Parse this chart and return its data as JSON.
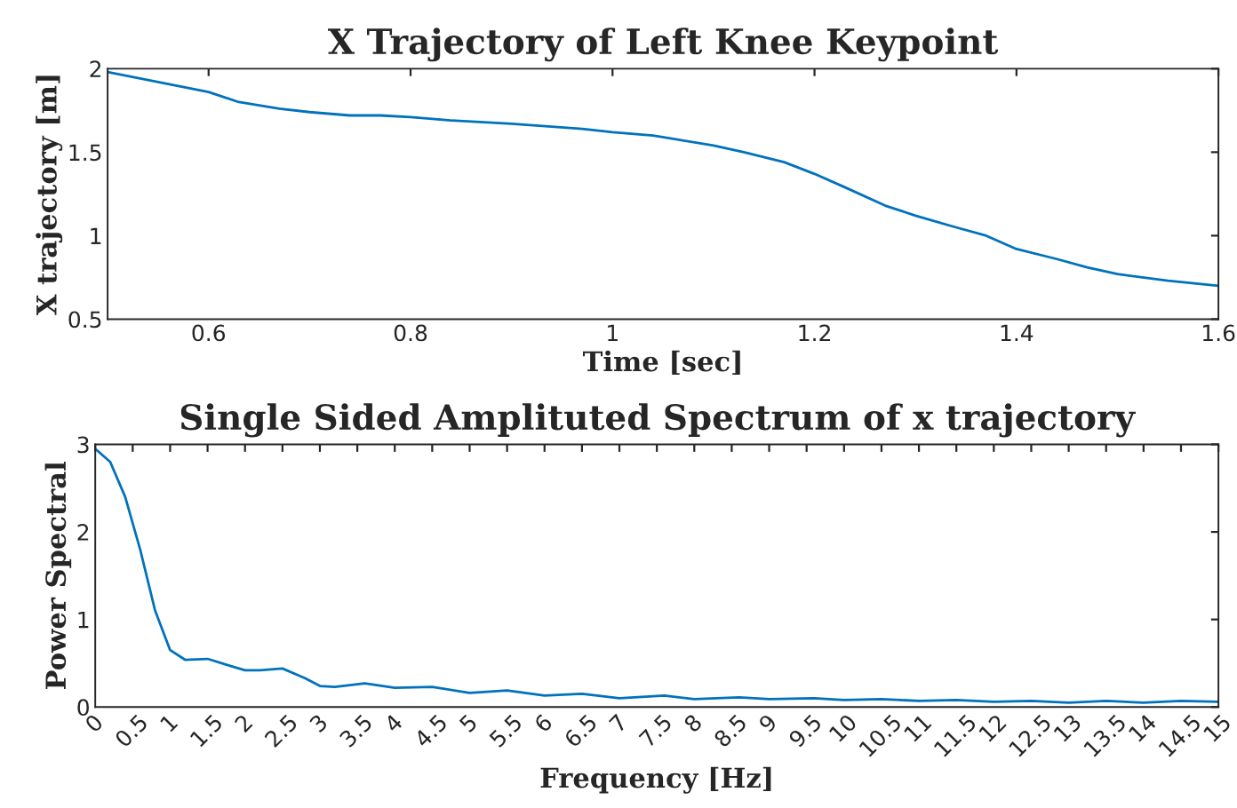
{
  "chart_data": [
    {
      "type": "line",
      "title": "X Trajectory of Left Knee Keypoint",
      "xlabel": "Time [sec]",
      "ylabel": "X trajectory [m]",
      "series": [
        {
          "color": "#0072bd",
          "x": [
            0.5,
            0.55,
            0.6,
            0.63,
            0.67,
            0.7,
            0.74,
            0.77,
            0.8,
            0.84,
            0.9,
            0.97,
            1.0,
            1.04,
            1.1,
            1.13,
            1.17,
            1.2,
            1.23,
            1.27,
            1.3,
            1.34,
            1.37,
            1.4,
            1.44,
            1.47,
            1.5,
            1.55,
            1.6
          ],
          "values": [
            1.98,
            1.92,
            1.86,
            1.8,
            1.76,
            1.74,
            1.72,
            1.72,
            1.71,
            1.69,
            1.67,
            1.64,
            1.62,
            1.6,
            1.54,
            1.5,
            1.44,
            1.37,
            1.29,
            1.18,
            1.12,
            1.05,
            1.0,
            0.92,
            0.86,
            0.81,
            0.77,
            0.73,
            0.7
          ]
        }
      ],
      "xlim": [
        0.5,
        1.6
      ],
      "xticks": [
        0.6,
        0.8,
        1,
        1.2,
        1.4,
        1.6
      ],
      "ylim": [
        0.5,
        2
      ],
      "yticks": [
        0.5,
        1,
        1.5,
        2
      ],
      "grid": false,
      "legend": false
    },
    {
      "type": "line",
      "title": "Single Sided Amplituted Spectrum of x trajectory",
      "xlabel": "Frequency [Hz]",
      "ylabel": "Power Spectral",
      "series": [
        {
          "color": "#0072bd",
          "x": [
            0,
            0.2,
            0.4,
            0.6,
            0.8,
            1.0,
            1.2,
            1.5,
            1.8,
            2.0,
            2.2,
            2.5,
            2.8,
            3.0,
            3.2,
            3.6,
            4.0,
            4.5,
            5.0,
            5.5,
            6.0,
            6.5,
            7.0,
            7.6,
            8.0,
            8.6,
            9.0,
            9.6,
            10,
            10.5,
            11,
            11.5,
            12,
            12.5,
            13,
            13.5,
            14,
            14.5,
            15
          ],
          "values": [
            2.95,
            2.8,
            2.4,
            1.8,
            1.1,
            0.65,
            0.54,
            0.55,
            0.47,
            0.42,
            0.42,
            0.44,
            0.33,
            0.24,
            0.23,
            0.27,
            0.22,
            0.23,
            0.16,
            0.19,
            0.13,
            0.15,
            0.1,
            0.13,
            0.09,
            0.11,
            0.09,
            0.1,
            0.08,
            0.09,
            0.07,
            0.08,
            0.06,
            0.07,
            0.05,
            0.07,
            0.05,
            0.07,
            0.06
          ]
        }
      ],
      "xlim": [
        0,
        15
      ],
      "xticks": [
        0,
        0.5,
        1,
        1.5,
        2,
        2.5,
        3,
        3.5,
        4,
        4.5,
        5,
        5.5,
        6,
        6.5,
        7,
        7.5,
        8,
        8.5,
        9,
        9.5,
        10,
        10.5,
        11,
        11.5,
        12,
        12.5,
        13,
        13.5,
        14,
        14.5,
        15
      ],
      "ylim": [
        0,
        3
      ],
      "yticks": [
        0,
        1,
        2,
        3
      ],
      "grid": false,
      "legend": false
    }
  ]
}
